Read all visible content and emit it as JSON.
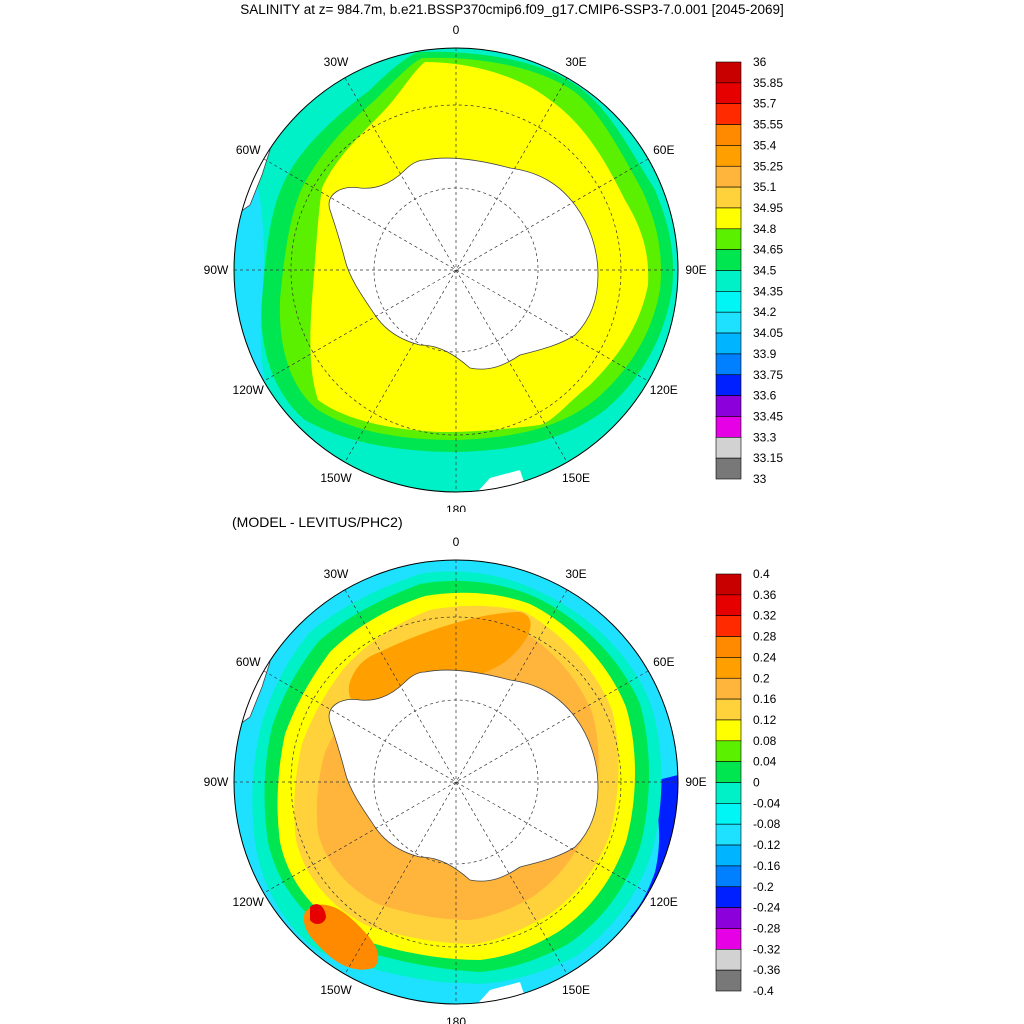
{
  "title": "SALINITY at z= 984.7m, b.e21.BSSP370cmip6.f09_g17.CMIP6-SSP3-7.0.001 [2045-2069]",
  "subtitle": "(MODEL - LEVITUS/PHC2)",
  "lon_labels": [
    "0",
    "30E",
    "60E",
    "90E",
    "120E",
    "150E",
    "180",
    "150W",
    "120W",
    "90W",
    "60W",
    "30W"
  ],
  "colorbars": [
    {
      "labels": [
        "36",
        "35.85",
        "35.7",
        "35.55",
        "35.4",
        "35.25",
        "35.1",
        "34.95",
        "34.8",
        "34.65",
        "34.5",
        "34.35",
        "34.2",
        "34.05",
        "33.9",
        "33.75",
        "33.6",
        "33.45",
        "33.3",
        "33.15",
        "33"
      ],
      "colors": [
        "#c80000",
        "#e60000",
        "#ff2a00",
        "#ff8a00",
        "#ffa000",
        "#ffb43c",
        "#ffd23c",
        "#ffff00",
        "#5af000",
        "#00e650",
        "#00f0c8",
        "#00f5f5",
        "#1ee1ff",
        "#00b4ff",
        "#0080ff",
        "#0020ff",
        "#8c00dc",
        "#e600e6",
        "#d2d2d2",
        "#787878"
      ]
    },
    {
      "labels": [
        "0.4",
        "0.36",
        "0.32",
        "0.28",
        "0.24",
        "0.2",
        "0.16",
        "0.12",
        "0.08",
        "0.04",
        "0",
        "-0.04",
        "-0.08",
        "-0.12",
        "-0.16",
        "-0.2",
        "-0.24",
        "-0.28",
        "-0.32",
        "-0.36",
        "-0.4"
      ],
      "colors": [
        "#c80000",
        "#e60000",
        "#ff2a00",
        "#ff8a00",
        "#ffa000",
        "#ffb43c",
        "#ffd23c",
        "#ffff00",
        "#5af000",
        "#00e650",
        "#00f0c8",
        "#00f5f5",
        "#1ee1ff",
        "#00b4ff",
        "#0080ff",
        "#0020ff",
        "#8c00dc",
        "#e600e6",
        "#d2d2d2",
        "#787878"
      ]
    }
  ]
}
